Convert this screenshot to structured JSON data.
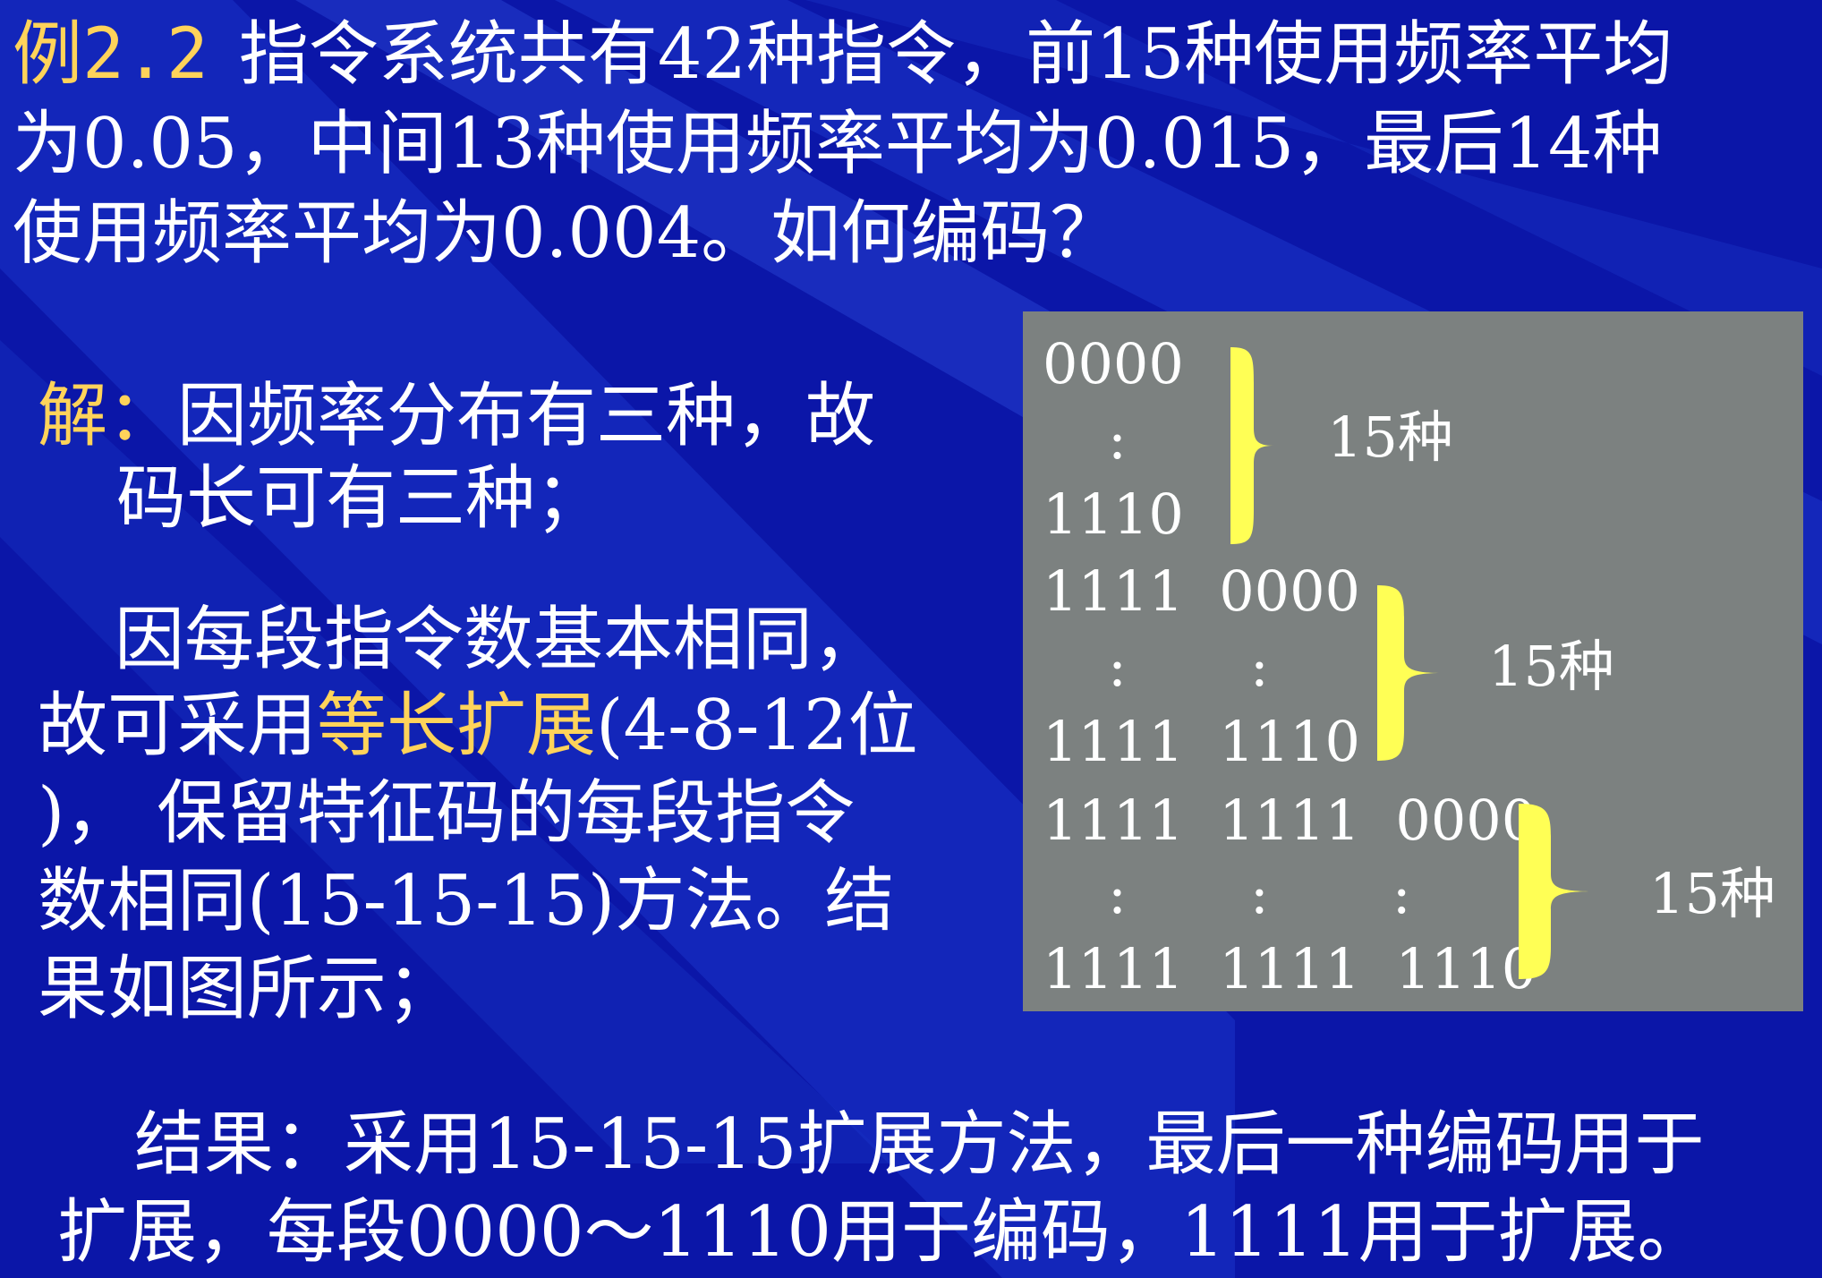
{
  "title": {
    "label": "例2.2",
    "line1": "指令系统共有42种指令，前15种使用频率平均",
    "line2": "为0.05，中间13种使用频率平均为0.015，最后14种",
    "line3": "使用频率平均为0.004。如何编码？"
  },
  "solution": {
    "label": "解：",
    "line1": "因频率分布有三种，故",
    "line2": "码长可有三种；"
  },
  "method": {
    "line1": "因每段指令数基本相同，",
    "line2_pre": "故可采用",
    "line2_highlight": "等长扩展",
    "line2_post": "(4-8-12位",
    "line3": ")，  保留特征码的每段指令",
    "line4": "数相同(15-15-15)方法。结",
    "line5": "果如图所示；"
  },
  "conclusion": {
    "line1": "结果：采用15-15-15扩展方法，最后一种编码用于",
    "line2": "扩展，每段0000～1110用于编码，1111用于扩展。"
  },
  "codes": {
    "g1": {
      "first": "0000",
      "dots": ":",
      "last": "1110",
      "count": "15种"
    },
    "g2": {
      "first": "1111  0000",
      "dots": ":       :",
      "last": "1111  1110",
      "count": "15种"
    },
    "g3": {
      "first": "1111  1111  0000",
      "dots": ":       :       :",
      "last": "1111  1111  1110",
      "count": "15种"
    }
  },
  "colors": {
    "background": "#0a14a6",
    "highlight": "#ffd35a",
    "panel": "#7c8180",
    "brace": "#ffff55"
  }
}
